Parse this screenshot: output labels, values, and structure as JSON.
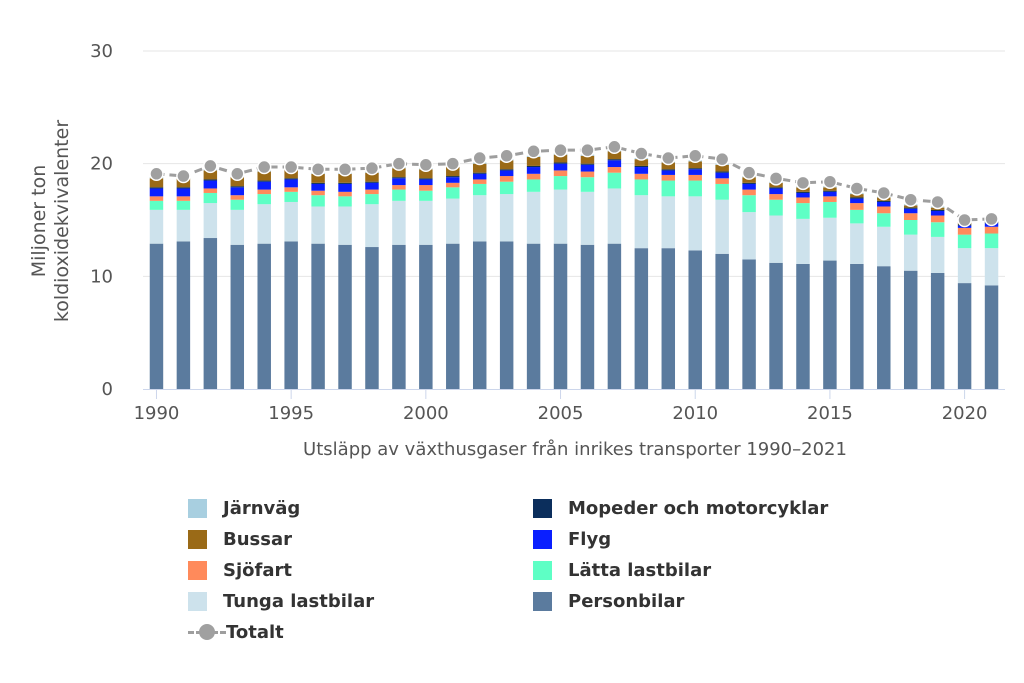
{
  "chart_data": {
    "type": "bar",
    "stacked": true,
    "title": "",
    "xlabel": "Utsläpp av växthusgaser från inrikes transporter 1990–2021",
    "ylabel_line1": "Miljoner ton",
    "ylabel_line2": "koldioxidekvivalenter",
    "ylim": [
      0,
      30
    ],
    "yticks": [
      0,
      10,
      20,
      30
    ],
    "xticks": [
      1990,
      1995,
      2000,
      2005,
      2010,
      2015,
      2020
    ],
    "grid": true,
    "legend_position": "bottom",
    "categories": [
      1990,
      1991,
      1992,
      1993,
      1994,
      1995,
      1996,
      1997,
      1998,
      1999,
      2000,
      2001,
      2002,
      2003,
      2004,
      2005,
      2006,
      2007,
      2008,
      2009,
      2010,
      2011,
      2012,
      2013,
      2014,
      2015,
      2016,
      2017,
      2018,
      2019,
      2020,
      2021
    ],
    "series": [
      {
        "name": "Personbilar",
        "color": "#5b7b9e",
        "values": [
          12.9,
          13.1,
          13.4,
          12.8,
          12.9,
          13.1,
          12.9,
          12.8,
          12.6,
          12.8,
          12.8,
          12.9,
          13.1,
          13.1,
          12.9,
          12.9,
          12.8,
          12.9,
          12.5,
          12.5,
          12.3,
          12.0,
          11.5,
          11.2,
          11.1,
          11.4,
          11.1,
          10.9,
          10.5,
          10.3,
          9.4,
          9.2
        ]
      },
      {
        "name": "Tunga lastbilar",
        "color": "#cde2ec",
        "values": [
          3.0,
          2.8,
          3.1,
          3.1,
          3.5,
          3.5,
          3.3,
          3.4,
          3.8,
          3.9,
          3.9,
          4.0,
          4.1,
          4.2,
          4.6,
          4.8,
          4.7,
          4.9,
          4.7,
          4.6,
          4.8,
          4.8,
          4.2,
          4.2,
          4.0,
          3.8,
          3.6,
          3.5,
          3.2,
          3.2,
          3.1,
          3.3
        ]
      },
      {
        "name": "Lätta lastbilar",
        "color": "#5effc5",
        "values": [
          0.8,
          0.8,
          0.9,
          0.9,
          0.9,
          0.9,
          1.0,
          0.9,
          0.9,
          1.0,
          0.9,
          1.0,
          1.0,
          1.1,
          1.1,
          1.2,
          1.3,
          1.4,
          1.4,
          1.4,
          1.4,
          1.4,
          1.5,
          1.4,
          1.4,
          1.4,
          1.2,
          1.2,
          1.3,
          1.3,
          1.2,
          1.3
        ]
      },
      {
        "name": "Sjöfart",
        "color": "#ff8a5b",
        "values": [
          0.4,
          0.4,
          0.4,
          0.4,
          0.4,
          0.4,
          0.4,
          0.4,
          0.4,
          0.4,
          0.5,
          0.4,
          0.4,
          0.5,
          0.5,
          0.5,
          0.5,
          0.5,
          0.5,
          0.5,
          0.5,
          0.5,
          0.5,
          0.5,
          0.5,
          0.5,
          0.6,
          0.6,
          0.6,
          0.6,
          0.6,
          0.6
        ]
      },
      {
        "name": "Flyg",
        "color": "#0a1fff",
        "values": [
          0.7,
          0.7,
          0.7,
          0.7,
          0.7,
          0.7,
          0.6,
          0.7,
          0.6,
          0.6,
          0.5,
          0.5,
          0.5,
          0.5,
          0.6,
          0.6,
          0.6,
          0.6,
          0.6,
          0.4,
          0.5,
          0.5,
          0.5,
          0.5,
          0.4,
          0.4,
          0.4,
          0.4,
          0.4,
          0.4,
          0.2,
          0.3
        ]
      },
      {
        "name": "Mopeder och motorcyklar",
        "color": "#0b2e5c",
        "values": [
          0.1,
          0.1,
          0.1,
          0.1,
          0.1,
          0.1,
          0.1,
          0.1,
          0.1,
          0.1,
          0.1,
          0.1,
          0.1,
          0.1,
          0.1,
          0.1,
          0.1,
          0.1,
          0.1,
          0.1,
          0.1,
          0.1,
          0.1,
          0.1,
          0.1,
          0.1,
          0.1,
          0.1,
          0.1,
          0.1,
          0.1,
          0.1
        ]
      },
      {
        "name": "Bussar",
        "color": "#9a6a17",
        "values": [
          0.8,
          0.8,
          0.8,
          0.8,
          0.8,
          0.8,
          0.8,
          0.8,
          0.8,
          0.8,
          0.8,
          0.8,
          0.8,
          0.8,
          0.8,
          0.7,
          0.7,
          0.7,
          0.6,
          0.6,
          0.6,
          0.6,
          0.5,
          0.4,
          0.4,
          0.3,
          0.3,
          0.3,
          0.2,
          0.2,
          0.2,
          0.1
        ]
      },
      {
        "name": "Järnväg",
        "color": "#a8cfe0",
        "values": [
          0.1,
          0.1,
          0.1,
          0.1,
          0.1,
          0.1,
          0.1,
          0.1,
          0.1,
          0.1,
          0.1,
          0.1,
          0.1,
          0.1,
          0.1,
          0.1,
          0.1,
          0.1,
          0.1,
          0.1,
          0.1,
          0.1,
          0.1,
          0.1,
          0.1,
          0.1,
          0.1,
          0.1,
          0.1,
          0.1,
          0.1,
          0.1
        ]
      }
    ],
    "total": {
      "name": "Totalt",
      "color": "#9e9e9e",
      "values": [
        19.1,
        18.9,
        19.8,
        19.1,
        19.7,
        19.7,
        19.5,
        19.5,
        19.6,
        20.0,
        19.9,
        20.0,
        20.5,
        20.7,
        21.1,
        21.2,
        21.2,
        21.5,
        20.9,
        20.5,
        20.7,
        20.4,
        19.2,
        18.7,
        18.3,
        18.4,
        17.8,
        17.4,
        16.8,
        16.6,
        15.0,
        15.1
      ]
    }
  },
  "legend": {
    "left": [
      {
        "label": "Järnväg",
        "color": "#a8cfe0"
      },
      {
        "label": "Bussar",
        "color": "#9a6a17"
      },
      {
        "label": "Sjöfart",
        "color": "#ff8a5b"
      },
      {
        "label": "Tunga lastbilar",
        "color": "#cde2ec"
      },
      {
        "label": "Totalt",
        "color": "#9e9e9e"
      }
    ],
    "right": [
      {
        "label": "Mopeder och motorcyklar",
        "color": "#0b2e5c"
      },
      {
        "label": "Flyg",
        "color": "#0a1fff"
      },
      {
        "label": "Lätta lastbilar",
        "color": "#5effc5"
      },
      {
        "label": "Personbilar",
        "color": "#5b7b9e"
      }
    ]
  }
}
